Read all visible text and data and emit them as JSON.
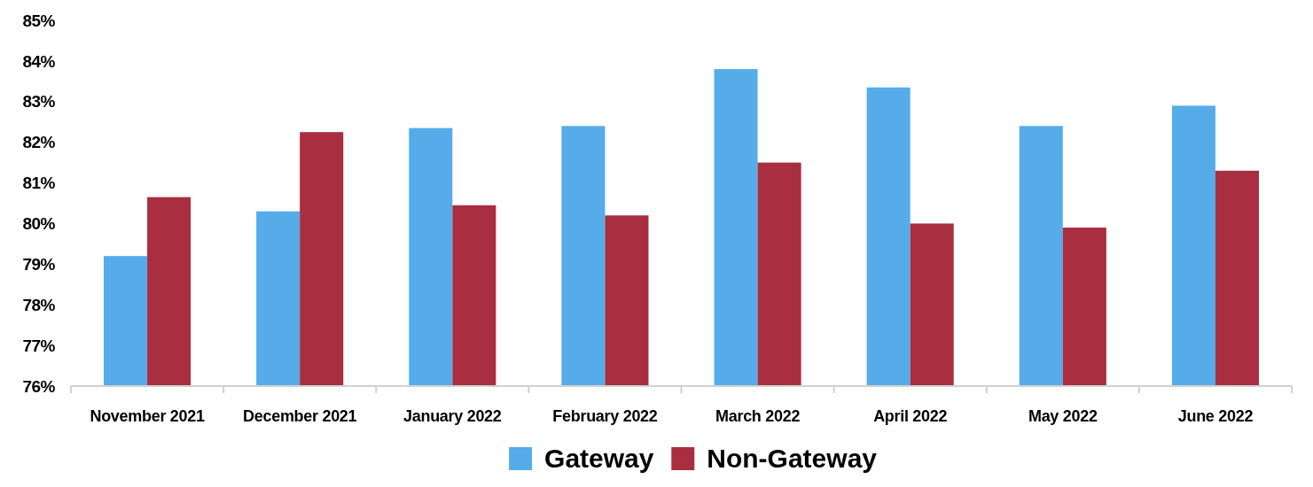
{
  "chart_data": {
    "type": "bar",
    "categories": [
      "November 2021",
      "December 2021",
      "January 2022",
      "February 2022",
      "March 2022",
      "April 2022",
      "May 2022",
      "June 2022"
    ],
    "series": [
      {
        "name": "Gateway",
        "color": "#55ace9",
        "values": [
          79.2,
          80.3,
          82.35,
          82.4,
          83.8,
          83.35,
          82.4,
          82.9
        ]
      },
      {
        "name": "Non-Gateway",
        "color": "#a82e40",
        "values": [
          80.65,
          82.25,
          80.45,
          80.2,
          81.5,
          80.0,
          79.9,
          81.3
        ]
      }
    ],
    "ylim": [
      76,
      85
    ],
    "yticks": [
      {
        "value": 76,
        "label": "76%"
      },
      {
        "value": 77,
        "label": "77%"
      },
      {
        "value": 78,
        "label": "78%"
      },
      {
        "value": 79,
        "label": "79%"
      },
      {
        "value": 80,
        "label": "80%"
      },
      {
        "value": 81,
        "label": "81%"
      },
      {
        "value": 82,
        "label": "82%"
      },
      {
        "value": 83,
        "label": "83%"
      },
      {
        "value": 84,
        "label": "84%"
      },
      {
        "value": 85,
        "label": "85%"
      }
    ],
    "grid": false,
    "legend": "bottom"
  }
}
